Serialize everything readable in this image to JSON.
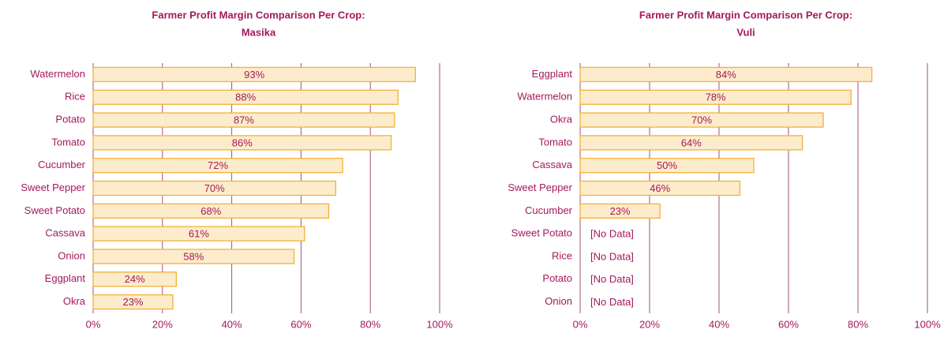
{
  "chart_data": [
    {
      "type": "bar",
      "orientation": "horizontal",
      "title": [
        "Farmer Profit Margin Comparison Per Crop:",
        "Masika"
      ],
      "categories": [
        "Watermelon",
        "Rice",
        "Potato",
        "Tomato",
        "Cucumber",
        "Sweet Pepper",
        "Sweet Potato",
        "Cassava",
        "Onion",
        "Eggplant",
        "Okra"
      ],
      "values": [
        93,
        88,
        87,
        86,
        72,
        70,
        68,
        61,
        58,
        24,
        23
      ],
      "value_labels": [
        "93%",
        "88%",
        "87%",
        "86%",
        "72%",
        "70%",
        "68%",
        "61%",
        "58%",
        "24%",
        "23%"
      ],
      "color": "#fdeccb",
      "edge_color": "#f2b13c",
      "xlim": [
        0,
        100
      ],
      "xticks": [
        {
          "value": 0,
          "label": "0%"
        },
        {
          "value": 20,
          "label": "20%"
        },
        {
          "value": 40,
          "label": "40%"
        },
        {
          "value": 60,
          "label": "60%"
        },
        {
          "value": 80,
          "label": "80%"
        },
        {
          "value": 100,
          "label": "100%"
        }
      ],
      "grid": true
    },
    {
      "type": "bar",
      "orientation": "horizontal",
      "title": [
        "Farmer Profit Margin Comparison Per Crop:",
        "Vuli"
      ],
      "categories": [
        "Eggplant",
        "Watermelon",
        "Okra",
        "Tomato",
        "Cassava",
        "Sweet Pepper",
        "Cucumber",
        "Sweet Potato",
        "Rice",
        "Potato",
        "Onion"
      ],
      "values": [
        84,
        78,
        70,
        64,
        50,
        46,
        23,
        null,
        null,
        null,
        null
      ],
      "value_labels": [
        "84%",
        "78%",
        "70%",
        "64%",
        "50%",
        "46%",
        "23%",
        "[No Data]",
        "[No Data]",
        "[No Data]",
        "[No Data]"
      ],
      "color": "#fdeccb",
      "edge_color": "#f2b13c",
      "xlim": [
        0,
        100
      ],
      "xticks": [
        {
          "value": 0,
          "label": "0%"
        },
        {
          "value": 20,
          "label": "20%"
        },
        {
          "value": 40,
          "label": "40%"
        },
        {
          "value": 60,
          "label": "60%"
        },
        {
          "value": 80,
          "label": "80%"
        },
        {
          "value": 100,
          "label": "100%"
        }
      ],
      "grid": true
    }
  ]
}
